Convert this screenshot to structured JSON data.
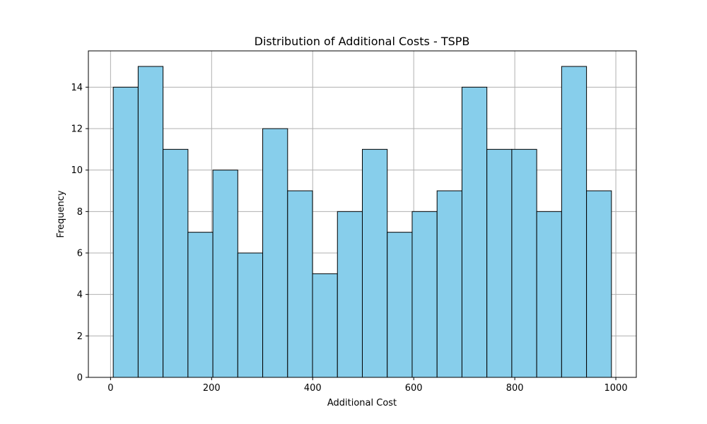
{
  "chart_data": {
    "type": "bar",
    "title": "Distribution of Additional Costs - TSPB",
    "xlabel": "Additional Cost",
    "ylabel": "Frequency",
    "bin_edges": [
      5.3,
      54.6,
      103.9,
      153.2,
      202.5,
      251.8,
      301.1,
      350.4,
      399.7,
      449.0,
      498.3,
      547.6,
      596.9,
      646.2,
      695.5,
      744.8,
      794.1,
      843.4,
      892.7,
      942.0,
      991.3
    ],
    "values": [
      14,
      15,
      11,
      7,
      10,
      6,
      12,
      9,
      5,
      8,
      11,
      7,
      8,
      9,
      14,
      11,
      11,
      8,
      15,
      9
    ],
    "xlim": [
      -43.9,
      1040.5
    ],
    "ylim": [
      0,
      15.75
    ],
    "xticks": [
      0,
      200,
      400,
      600,
      800,
      1000
    ],
    "yticks": [
      0,
      2,
      4,
      6,
      8,
      10,
      12,
      14
    ],
    "grid": true,
    "bar_color": "#87CEEB",
    "edge_color": "#000000",
    "grid_color": "#b0b0b0"
  }
}
